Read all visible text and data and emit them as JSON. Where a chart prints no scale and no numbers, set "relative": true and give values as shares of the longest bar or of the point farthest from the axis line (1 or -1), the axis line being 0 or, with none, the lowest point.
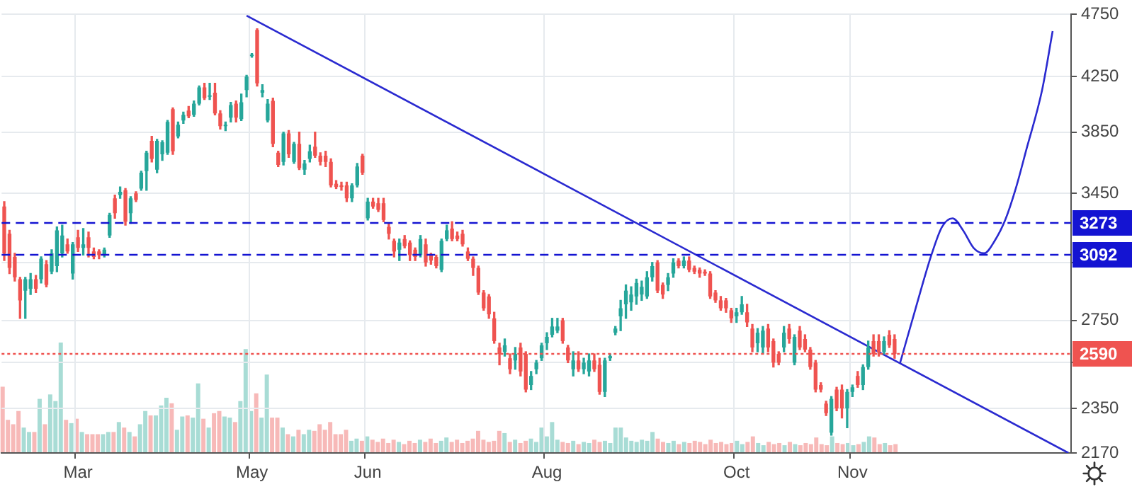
{
  "chart_data": [
    {
      "type": "candlestick",
      "log": true,
      "grid": true,
      "ylim": [
        2170,
        4750
      ],
      "yticks": [
        2170,
        2350,
        {
          "value": 2550,
          "label": null
        },
        2750,
        {
          "value": 3050,
          "label": null
        },
        3450,
        3850,
        4250,
        4750
      ],
      "categories": [
        null,
        null,
        null,
        null,
        null,
        null,
        null,
        null,
        null,
        null,
        null,
        null,
        null,
        null,
        "Mar",
        null,
        null,
        null,
        null,
        null,
        null,
        null,
        null,
        null,
        null,
        null,
        null,
        null,
        null,
        null,
        null,
        null,
        null,
        null,
        null,
        null,
        null,
        null,
        null,
        null,
        null,
        null,
        null,
        null,
        null,
        null,
        null,
        "May",
        null,
        null,
        null,
        null,
        null,
        null,
        null,
        null,
        null,
        null,
        null,
        null,
        null,
        null,
        null,
        null,
        null,
        null,
        null,
        null,
        null,
        "Jun",
        null,
        null,
        null,
        null,
        null,
        null,
        null,
        null,
        null,
        null,
        null,
        null,
        null,
        null,
        null,
        null,
        null,
        null,
        null,
        null,
        null,
        null,
        null,
        null,
        null,
        null,
        null,
        null,
        null,
        null,
        null,
        null,
        null,
        "Aug",
        null,
        null,
        null,
        null,
        null,
        null,
        null,
        null,
        null,
        null,
        null,
        null,
        null,
        null,
        null,
        null,
        null,
        null,
        null,
        null,
        null,
        null,
        null,
        null,
        null,
        null,
        null,
        null,
        null,
        null,
        null,
        null,
        null,
        null,
        null,
        "Oct",
        null,
        null,
        null,
        null,
        null,
        null,
        null,
        null,
        null,
        null,
        null,
        null,
        null,
        null,
        null,
        null,
        null,
        null,
        null,
        null,
        null,
        "Nov",
        null,
        null,
        null,
        null,
        null,
        null,
        null,
        null,
        null,
        null,
        null,
        null,
        null,
        null,
        null,
        null,
        null,
        null,
        null,
        null,
        null,
        null,
        null,
        null,
        null,
        null,
        null,
        null,
        null,
        null,
        null,
        null,
        null,
        null,
        null,
        null,
        null,
        null,
        null,
        null,
        null
      ],
      "ohlc": [
        [
          3370,
          3400,
          3060,
          3100
        ],
        [
          3210,
          3230,
          2990,
          3020
        ],
        [
          3080,
          3100,
          2950,
          2970
        ],
        [
          2960,
          2970,
          2760,
          2850
        ],
        [
          2900,
          2970,
          2760,
          2960
        ],
        [
          2910,
          2990,
          2880,
          2960
        ],
        [
          2960,
          2980,
          2890,
          2910
        ],
        [
          2960,
          3080,
          2940,
          3070
        ],
        [
          3040,
          3060,
          2920,
          2930
        ],
        [
          3000,
          3120,
          2990,
          3100
        ],
        [
          3030,
          3250,
          3000,
          3230
        ],
        [
          3100,
          3260,
          3080,
          3200
        ],
        [
          3150,
          3180,
          3100,
          3110
        ],
        [
          2990,
          3160,
          2960,
          3150
        ],
        [
          3190,
          3230,
          3110,
          3130
        ],
        [
          3130,
          3240,
          3090,
          3150
        ],
        [
          3190,
          3220,
          3080,
          3130
        ],
        [
          3110,
          3130,
          3070,
          3080
        ],
        [
          3110,
          3120,
          3070,
          3090
        ],
        [
          3090,
          3130,
          3080,
          3120
        ],
        [
          3200,
          3330,
          3190,
          3320
        ],
        [
          3420,
          3440,
          3300,
          3330
        ],
        [
          3440,
          3490,
          3420,
          3460
        ],
        [
          3470,
          3480,
          3260,
          3280
        ],
        [
          3330,
          3430,
          3270,
          3420
        ],
        [
          3450,
          3460,
          3400,
          3410
        ],
        [
          3480,
          3590,
          3470,
          3580
        ],
        [
          3590,
          3720,
          3470,
          3710
        ],
        [
          3790,
          3820,
          3650,
          3670
        ],
        [
          3600,
          3800,
          3580,
          3790
        ],
        [
          3700,
          3790,
          3660,
          3780
        ],
        [
          3710,
          3930,
          3700,
          3920
        ],
        [
          4010,
          4020,
          3700,
          3720
        ],
        [
          3820,
          3920,
          3810,
          3900
        ],
        [
          3930,
          3990,
          3910,
          3970
        ],
        [
          4000,
          4030,
          3950,
          3960
        ],
        [
          3970,
          4070,
          3960,
          4050
        ],
        [
          4050,
          4180,
          4040,
          4170
        ],
        [
          4170,
          4200,
          4080,
          4090
        ],
        [
          4100,
          4200,
          4080,
          4110
        ],
        [
          4130,
          4200,
          3970,
          3980
        ],
        [
          3980,
          4000,
          3870,
          3890
        ],
        [
          3890,
          3920,
          3860,
          3900
        ],
        [
          3950,
          4060,
          3920,
          4040
        ],
        [
          4050,
          4070,
          3920,
          3950
        ],
        [
          3940,
          4120,
          3930,
          4060
        ],
        [
          4150,
          4260,
          4100,
          4250
        ],
        [
          4410,
          4430,
          4400,
          4420
        ],
        [
          4620,
          4630,
          4180,
          4200
        ],
        [
          4130,
          4190,
          4100,
          4150
        ],
        [
          3930,
          4080,
          3920,
          4050
        ],
        [
          4070,
          4090,
          3750,
          3770
        ],
        [
          3710,
          3720,
          3620,
          3630
        ],
        [
          3650,
          3850,
          3630,
          3840
        ],
        [
          3840,
          3860,
          3680,
          3700
        ],
        [
          3650,
          3780,
          3640,
          3770
        ],
        [
          3770,
          3850,
          3600,
          3610
        ],
        [
          3600,
          3660,
          3570,
          3640
        ],
        [
          3670,
          3760,
          3650,
          3720
        ],
        [
          3750,
          3850,
          3680,
          3690
        ],
        [
          3690,
          3710,
          3630,
          3650
        ],
        [
          3690,
          3720,
          3620,
          3650
        ],
        [
          3650,
          3670,
          3490,
          3500
        ],
        [
          3510,
          3530,
          3480,
          3490
        ],
        [
          3500,
          3520,
          3470,
          3490
        ],
        [
          3500,
          3520,
          3400,
          3420
        ],
        [
          3420,
          3510,
          3400,
          3500
        ],
        [
          3500,
          3640,
          3490,
          3620
        ],
        [
          3690,
          3700,
          3570,
          3580
        ],
        [
          3300,
          3420,
          3290,
          3400
        ],
        [
          3400,
          3420,
          3360,
          3370
        ],
        [
          3390,
          3420,
          3340,
          3350
        ],
        [
          3390,
          3420,
          3280,
          3290
        ],
        [
          3250,
          3270,
          3180,
          3210
        ],
        [
          3170,
          3180,
          3080,
          3110
        ],
        [
          3120,
          3180,
          3060,
          3160
        ],
        [
          3180,
          3200,
          3130,
          3140
        ],
        [
          3160,
          3170,
          3060,
          3090
        ],
        [
          3120,
          3130,
          3060,
          3080
        ],
        [
          3090,
          3200,
          3080,
          3180
        ],
        [
          3150,
          3180,
          3030,
          3050
        ],
        [
          3090,
          3100,
          3040,
          3060
        ],
        [
          3080,
          3090,
          3020,
          3030
        ],
        [
          3010,
          3180,
          3000,
          3170
        ],
        [
          3180,
          3260,
          3170,
          3230
        ],
        [
          3240,
          3280,
          3170,
          3180
        ],
        [
          3200,
          3220,
          3170,
          3180
        ],
        [
          3210,
          3230,
          3140,
          3150
        ],
        [
          3110,
          3130,
          3060,
          3070
        ],
        [
          3070,
          3080,
          2980,
          3020
        ],
        [
          3020,
          3030,
          2880,
          2890
        ],
        [
          2890,
          2900,
          2800,
          2810
        ],
        [
          2870,
          2880,
          2760,
          2780
        ],
        [
          2760,
          2790,
          2640,
          2650
        ],
        [
          2620,
          2640,
          2540,
          2590
        ],
        [
          2600,
          2660,
          2580,
          2630
        ],
        [
          2570,
          2590,
          2500,
          2520
        ],
        [
          2560,
          2620,
          2520,
          2590
        ],
        [
          2620,
          2640,
          2490,
          2510
        ],
        [
          2590,
          2600,
          2420,
          2430
        ],
        [
          2450,
          2510,
          2430,
          2490
        ],
        [
          2520,
          2560,
          2500,
          2550
        ],
        [
          2570,
          2640,
          2560,
          2630
        ],
        [
          2640,
          2690,
          2610,
          2670
        ],
        [
          2680,
          2760,
          2670,
          2720
        ],
        [
          2700,
          2760,
          2690,
          2720
        ],
        [
          2750,
          2760,
          2640,
          2650
        ],
        [
          2620,
          2630,
          2550,
          2560
        ],
        [
          2520,
          2600,
          2490,
          2560
        ],
        [
          2560,
          2600,
          2510,
          2520
        ],
        [
          2520,
          2570,
          2500,
          2550
        ],
        [
          2510,
          2590,
          2490,
          2560
        ],
        [
          2560,
          2590,
          2510,
          2520
        ],
        [
          2540,
          2570,
          2410,
          2420
        ],
        [
          2420,
          2570,
          2400,
          2560
        ],
        [
          2570,
          2590,
          2560,
          2580
        ],
        [
          2690,
          2720,
          2680,
          2710
        ],
        [
          2770,
          2850,
          2700,
          2810
        ],
        [
          2830,
          2930,
          2760,
          2900
        ],
        [
          2840,
          2920,
          2800,
          2880
        ],
        [
          2870,
          2960,
          2830,
          2940
        ],
        [
          2880,
          2950,
          2850,
          2920
        ],
        [
          2870,
          3000,
          2860,
          2970
        ],
        [
          2970,
          3050,
          2950,
          3030
        ],
        [
          3050,
          3060,
          2890,
          2900
        ],
        [
          2930,
          2940,
          2860,
          2880
        ],
        [
          2930,
          2990,
          2900,
          2970
        ],
        [
          2990,
          3070,
          2970,
          3050
        ],
        [
          3060,
          3070,
          3020,
          3030
        ],
        [
          3030,
          3080,
          3020,
          3060
        ],
        [
          3060,
          3080,
          3000,
          3010
        ],
        [
          3020,
          3030,
          2990,
          3000
        ],
        [
          3010,
          3020,
          2970,
          2990
        ],
        [
          3000,
          3010,
          2980,
          2990
        ],
        [
          2990,
          3000,
          2860,
          2870
        ],
        [
          2890,
          2900,
          2840,
          2850
        ],
        [
          2850,
          2870,
          2800,
          2810
        ],
        [
          2850,
          2860,
          2790,
          2810
        ],
        [
          2800,
          2810,
          2740,
          2760
        ],
        [
          2770,
          2810,
          2740,
          2790
        ],
        [
          2790,
          2870,
          2780,
          2830
        ],
        [
          2790,
          2830,
          2720,
          2740
        ],
        [
          2710,
          2730,
          2600,
          2620
        ],
        [
          2640,
          2710,
          2600,
          2690
        ],
        [
          2620,
          2720,
          2590,
          2700
        ],
        [
          2710,
          2730,
          2600,
          2620
        ],
        [
          2650,
          2660,
          2530,
          2550
        ],
        [
          2590,
          2600,
          2540,
          2550
        ],
        [
          2620,
          2720,
          2600,
          2690
        ],
        [
          2710,
          2730,
          2640,
          2660
        ],
        [
          2550,
          2680,
          2540,
          2670
        ],
        [
          2700,
          2720,
          2610,
          2620
        ],
        [
          2660,
          2680,
          2600,
          2610
        ],
        [
          2610,
          2620,
          2520,
          2530
        ],
        [
          2550,
          2560,
          2420,
          2430
        ],
        [
          2450,
          2460,
          2420,
          2430
        ],
        [
          2370,
          2380,
          2320,
          2330
        ],
        [
          2250,
          2400,
          2240,
          2390
        ],
        [
          2430,
          2440,
          2340,
          2350
        ],
        [
          2430,
          2450,
          2310,
          2350
        ],
        [
          2350,
          2430,
          2270,
          2420
        ],
        [
          2420,
          2450,
          2400,
          2440
        ],
        [
          2490,
          2510,
          2440,
          2450
        ],
        [
          2450,
          2540,
          2430,
          2530
        ],
        [
          2530,
          2650,
          2520,
          2620
        ],
        [
          2650,
          2680,
          2580,
          2590
        ],
        [
          2650,
          2680,
          2580,
          2600
        ],
        [
          2600,
          2670,
          2590,
          2650
        ],
        [
          2680,
          2700,
          2620,
          2630
        ],
        [
          2660,
          2680,
          2570,
          2590
        ],
        null,
        null,
        null,
        null,
        null,
        null,
        null,
        null,
        null,
        null,
        null,
        null,
        null,
        null,
        null,
        null,
        null,
        null,
        null,
        null,
        null,
        null,
        null,
        null,
        null,
        null,
        null,
        null,
        null,
        null,
        null,
        null,
        null
      ],
      "colors": [
        "#ef5350",
        "#ef5350",
        "#ef5350",
        "#ef5350",
        "#26a69a",
        "#26a69a",
        "#ef5350",
        "#26a69a",
        "#ef5350",
        "#26a69a",
        "#26a69a",
        "#26a69a",
        "#ef5350",
        "#26a69a",
        "#ef5350",
        "#26a69a",
        "#ef5350",
        "#ef5350",
        "#ef5350",
        "#26a69a",
        "#26a69a",
        "#ef5350",
        "#26a69a",
        "#ef5350",
        "#26a69a",
        "#ef5350",
        "#26a69a",
        "#26a69a",
        "#ef5350",
        "#26a69a",
        "#26a69a",
        "#26a69a",
        "#ef5350",
        "#26a69a",
        "#26a69a",
        "#ef5350",
        "#26a69a",
        "#26a69a",
        "#ef5350",
        "#26a69a",
        "#ef5350",
        "#ef5350",
        "#26a69a",
        "#26a69a",
        "#ef5350",
        "#26a69a",
        "#26a69a",
        "#26a69a",
        "#ef5350",
        "#26a69a",
        "#26a69a",
        "#ef5350",
        "#ef5350",
        "#26a69a",
        "#ef5350",
        "#26a69a",
        "#ef5350",
        "#26a69a",
        "#26a69a",
        "#ef5350",
        "#ef5350",
        "#ef5350",
        "#ef5350",
        "#ef5350",
        "#ef5350",
        "#ef5350",
        "#26a69a",
        "#26a69a",
        "#ef5350",
        "#26a69a",
        "#ef5350",
        "#ef5350",
        "#ef5350",
        "#ef5350",
        "#ef5350",
        "#26a69a",
        "#ef5350",
        "#ef5350",
        "#ef5350",
        "#26a69a",
        "#ef5350",
        "#ef5350",
        "#ef5350",
        "#26a69a",
        "#26a69a",
        "#ef5350",
        "#ef5350",
        "#ef5350",
        "#ef5350",
        "#ef5350",
        "#ef5350",
        "#ef5350",
        "#ef5350",
        "#ef5350",
        "#ef5350",
        "#26a69a",
        "#ef5350",
        "#26a69a",
        "#ef5350",
        "#ef5350",
        "#26a69a",
        "#26a69a",
        "#26a69a",
        "#26a69a",
        "#26a69a",
        "#26a69a",
        "#ef5350",
        "#ef5350",
        "#26a69a",
        "#ef5350",
        "#26a69a",
        "#26a69a",
        "#ef5350",
        "#ef5350",
        "#26a69a",
        "#26a69a",
        "#26a69a",
        "#26a69a",
        "#26a69a",
        "#26a69a",
        "#26a69a",
        "#26a69a",
        "#26a69a",
        "#26a69a",
        "#ef5350",
        "#ef5350",
        "#26a69a",
        "#26a69a",
        "#ef5350",
        "#26a69a",
        "#ef5350",
        "#ef5350",
        "#ef5350",
        "#ef5350",
        "#ef5350",
        "#ef5350",
        "#ef5350",
        "#ef5350",
        "#ef5350",
        "#26a69a",
        "#26a69a",
        "#ef5350",
        "#ef5350",
        "#26a69a",
        "#26a69a",
        "#ef5350",
        "#ef5350",
        "#ef5350",
        "#26a69a",
        "#ef5350",
        "#26a69a",
        "#ef5350",
        "#ef5350",
        "#ef5350",
        "#ef5350",
        "#ef5350",
        "#ef5350",
        "#26a69a",
        "#ef5350",
        "#ef5350",
        "#26a69a",
        "#26a69a",
        "#ef5350",
        "#26a69a",
        "#26a69a",
        "#ef5350",
        "#ef5350",
        "#26a69a",
        "#ef5350",
        "#ef5350",
        null,
        null,
        null,
        null,
        null,
        null,
        null,
        null,
        null,
        null,
        null,
        null,
        null,
        null,
        null,
        null,
        null,
        null,
        null,
        null,
        null,
        null,
        null,
        null,
        null,
        null,
        null,
        null,
        null,
        null,
        null,
        null,
        null
      ],
      "ref_lines": [
        {
          "axis": "y",
          "value": 3273,
          "label": "3273",
          "color": "#1414d2",
          "line_style": "dashed"
        },
        {
          "axis": "y",
          "value": 3092,
          "label": "3092",
          "color": "#1414d2",
          "line_style": "dashed"
        },
        {
          "axis": "y",
          "value": 2590,
          "label": "2590",
          "color": "#ef5350",
          "line_style": "dotted"
        }
      ],
      "series": [
        {
          "type": "line",
          "color": "#2a2ad0",
          "values": [
            null,
            null,
            null,
            null,
            null,
            null,
            null,
            null,
            null,
            null,
            null,
            null,
            null,
            null,
            null,
            null,
            null,
            null,
            null,
            null,
            null,
            null,
            null,
            null,
            null,
            null,
            null,
            null,
            null,
            null,
            null,
            null,
            null,
            null,
            null,
            null,
            null,
            null,
            null,
            null,
            null,
            null,
            null,
            null,
            null,
            null,
            4740,
            null,
            null,
            null,
            null,
            null,
            null,
            null,
            null,
            null,
            null,
            null,
            null,
            null,
            null,
            null,
            null,
            null,
            null,
            null,
            null,
            null,
            null,
            null,
            null,
            null,
            null,
            null,
            null,
            null,
            null,
            null,
            null,
            null,
            null,
            null,
            null,
            null,
            null,
            null,
            null,
            null,
            null,
            null,
            null,
            null,
            null,
            null,
            null,
            null,
            null,
            null,
            null,
            null,
            null,
            null,
            null,
            null,
            null,
            null,
            null,
            null,
            null,
            null,
            null,
            null,
            null,
            null,
            null,
            null,
            null,
            null,
            null,
            null,
            null,
            null,
            null,
            null,
            null,
            null,
            null,
            null,
            null,
            null,
            null,
            null,
            null,
            null,
            null,
            null,
            null,
            null,
            null,
            null,
            null,
            null,
            null,
            null,
            null,
            null,
            null,
            null,
            null,
            null,
            null,
            null,
            null,
            null,
            null,
            null,
            null,
            null,
            null,
            null,
            null,
            null,
            null,
            null,
            null,
            null,
            null,
            null,
            null,
            null,
            null,
            null,
            null,
            null,
            null,
            null,
            null,
            null,
            null,
            null,
            null,
            null,
            null,
            null,
            null,
            null,
            null,
            null,
            null,
            null,
            null,
            null,
            null,
            null,
            null,
            null,
            null,
            null,
            null,
            null,
            null,
            null,
            2170
          ]
        },
        {
          "type": "line",
          "color": "#2a2ad0",
          "values": [
            null,
            null,
            null,
            null,
            null,
            null,
            null,
            null,
            null,
            null,
            null,
            null,
            null,
            null,
            null,
            null,
            null,
            null,
            null,
            null,
            null,
            null,
            null,
            null,
            null,
            null,
            null,
            null,
            null,
            null,
            null,
            null,
            null,
            null,
            null,
            null,
            null,
            null,
            null,
            null,
            null,
            null,
            null,
            null,
            null,
            null,
            null,
            null,
            null,
            null,
            null,
            null,
            null,
            null,
            null,
            null,
            null,
            null,
            null,
            null,
            null,
            null,
            null,
            null,
            null,
            null,
            null,
            null,
            null,
            null,
            null,
            null,
            null,
            null,
            null,
            null,
            null,
            null,
            null,
            null,
            null,
            null,
            null,
            null,
            null,
            null,
            null,
            null,
            null,
            null,
            null,
            null,
            null,
            null,
            null,
            null,
            null,
            null,
            null,
            null,
            null,
            null,
            null,
            null,
            null,
            null,
            null,
            null,
            null,
            null,
            null,
            null,
            null,
            null,
            null,
            null,
            null,
            null,
            null,
            null,
            null,
            null,
            null,
            null,
            null,
            null,
            null,
            null,
            null,
            null,
            null,
            null,
            null,
            null,
            null,
            null,
            null,
            null,
            null,
            null,
            null,
            null,
            null,
            null,
            null,
            null,
            null,
            null,
            null,
            null,
            null,
            null,
            null,
            null,
            null,
            null,
            null,
            null,
            null,
            null,
            null,
            null,
            null,
            null,
            null,
            null,
            null,
            null,
            null,
            null,
            2545,
            null,
            null,
            2810,
            null,
            null,
            3092,
            null,
            3250,
            null,
            3300,
            null,
            3230,
            null,
            3130,
            null,
            3100,
            null,
            3170,
            null,
            3290,
            null,
            3480,
            null,
            3730,
            null,
            null,
            4150,
            null,
            4610,
            null,
            null,
            null
          ]
        }
      ]
    },
    {
      "type": "bar",
      "relative": true,
      "categories": [
        null,
        null,
        null,
        null,
        null,
        null,
        null,
        null,
        null,
        null,
        null,
        null,
        null,
        null,
        null,
        null,
        null,
        null,
        null,
        null,
        null,
        null,
        null,
        null,
        null,
        null,
        null,
        null,
        null,
        null,
        null,
        null,
        null,
        null,
        null,
        null,
        null,
        null,
        null,
        null,
        null,
        null,
        null,
        null,
        null,
        null,
        null,
        null,
        null,
        null,
        null,
        null,
        null,
        null,
        null,
        null,
        null,
        null,
        null,
        null,
        null,
        null,
        null,
        null,
        null,
        null,
        null,
        null,
        null,
        null,
        null,
        null,
        null,
        null,
        null,
        null,
        null,
        null,
        null,
        null,
        null,
        null,
        null,
        null,
        null,
        null,
        null,
        null,
        null,
        null,
        null,
        null,
        null,
        null,
        null,
        null,
        null,
        null,
        null,
        null,
        null,
        null,
        null,
        null,
        null,
        null,
        null,
        null,
        null,
        null,
        null,
        null,
        null,
        null,
        null,
        null,
        null,
        null,
        null,
        null,
        null,
        null,
        null,
        null,
        null,
        null,
        null,
        null,
        null,
        null,
        null,
        null,
        null,
        null,
        null,
        null,
        null,
        null,
        null,
        null,
        null,
        null,
        null,
        null,
        null,
        null,
        null,
        null,
        null,
        null,
        null,
        null,
        null,
        null,
        null,
        null,
        null,
        null,
        null,
        null,
        null,
        null,
        null,
        null,
        null,
        null,
        null,
        null,
        null,
        null,
        null,
        null,
        null,
        null,
        null,
        null,
        null,
        null,
        null,
        null,
        null,
        null,
        null,
        null,
        null,
        null,
        null,
        null,
        null,
        null,
        null,
        null,
        null,
        null,
        null,
        null,
        null,
        null,
        null,
        null,
        null,
        null,
        null
      ],
      "values": [
        0.6,
        0.3,
        0.26,
        0.38,
        0.23,
        0.19,
        0.19,
        0.49,
        0.26,
        0.53,
        0.47,
        1,
        0.3,
        0.27,
        0.31,
        0.19,
        0.17,
        0.17,
        0.17,
        0.17,
        0.19,
        0.19,
        0.28,
        0.23,
        0.19,
        0.15,
        0.26,
        0.38,
        0.34,
        0.34,
        0.43,
        0.5,
        0.45,
        0.21,
        0.33,
        0.34,
        0.32,
        0.63,
        0.31,
        0.23,
        0.36,
        0.38,
        0.33,
        0.32,
        0.28,
        0.47,
        0.94,
        0.38,
        0.54,
        0.32,
        0.71,
        0.32,
        0.32,
        0.23,
        0.17,
        0.15,
        0.21,
        0.17,
        0.21,
        0.2,
        0.26,
        0.21,
        0.28,
        0.17,
        0.17,
        0.21,
        0.11,
        0.13,
        0.11,
        0.15,
        0.12,
        0.1,
        0.13,
        0.09,
        0.12,
        0.1,
        0.08,
        0.11,
        0.09,
        0.12,
        0.1,
        0.13,
        0.09,
        0.11,
        0.14,
        0.1,
        0.12,
        0.09,
        0.11,
        0.13,
        0.2,
        0.12,
        0.1,
        0.11,
        0.2,
        0.18,
        0.1,
        0.12,
        0.09,
        0.11,
        0.13,
        0.1,
        0.23,
        0.15,
        0.28,
        0.12,
        0.1,
        0.09,
        0.11,
        0.08,
        0.1,
        0.09,
        0.12,
        0.1,
        0.11,
        0.09,
        0.23,
        0.23,
        0.14,
        0.11,
        0.1,
        0.12,
        0.11,
        0.19,
        0.13,
        0.1,
        0.09,
        0.11,
        0.08,
        0.1,
        0.09,
        0.11,
        0.1,
        0.08,
        0.12,
        0.09,
        0.1,
        0.08,
        0.09,
        0.11,
        0.08,
        0.1,
        0.15,
        0.09,
        0.07,
        0.1,
        0.08,
        0.09,
        0.07,
        0.1,
        0.08,
        0.07,
        0.09,
        0.08,
        0.14,
        0.08,
        0.07,
        0.15,
        0.09,
        0.08,
        0.09,
        0.07,
        0.08,
        0.1,
        0.15,
        0.14,
        0.08,
        0.09,
        0.07,
        0.08,
        null,
        null,
        null,
        null,
        null,
        null,
        null,
        null,
        null,
        null,
        null,
        null,
        null,
        null,
        null,
        null,
        null,
        null,
        null,
        null,
        null,
        null,
        null,
        null,
        null,
        null,
        null,
        null,
        null,
        null,
        null,
        null,
        null
      ],
      "colors": [
        "#f7b9b8",
        "#f7b9b8",
        "#f7b9b8",
        "#f7b9b8",
        "#a8dcd5",
        "#a8dcd5",
        "#f7b9b8",
        "#a8dcd5",
        "#f7b9b8",
        "#a8dcd5",
        "#a8dcd5",
        "#a8dcd5",
        "#f7b9b8",
        "#a8dcd5",
        "#f7b9b8",
        "#a8dcd5",
        "#f7b9b8",
        "#f7b9b8",
        "#f7b9b8",
        "#a8dcd5",
        "#a8dcd5",
        "#f7b9b8",
        "#a8dcd5",
        "#f7b9b8",
        "#a8dcd5",
        "#f7b9b8",
        "#a8dcd5",
        "#a8dcd5",
        "#f7b9b8",
        "#a8dcd5",
        "#a8dcd5",
        "#a8dcd5",
        "#f7b9b8",
        "#a8dcd5",
        "#a8dcd5",
        "#f7b9b8",
        "#a8dcd5",
        "#a8dcd5",
        "#f7b9b8",
        "#a8dcd5",
        "#f7b9b8",
        "#f7b9b8",
        "#a8dcd5",
        "#a8dcd5",
        "#f7b9b8",
        "#a8dcd5",
        "#a8dcd5",
        "#a8dcd5",
        "#f7b9b8",
        "#a8dcd5",
        "#a8dcd5",
        "#f7b9b8",
        "#f7b9b8",
        "#a8dcd5",
        "#f7b9b8",
        "#a8dcd5",
        "#f7b9b8",
        "#a8dcd5",
        "#a8dcd5",
        "#f7b9b8",
        "#f7b9b8",
        "#f7b9b8",
        "#f7b9b8",
        "#f7b9b8",
        "#f7b9b8",
        "#f7b9b8",
        "#a8dcd5",
        "#a8dcd5",
        "#f7b9b8",
        "#a8dcd5",
        "#f7b9b8",
        "#f7b9b8",
        "#f7b9b8",
        "#f7b9b8",
        "#f7b9b8",
        "#a8dcd5",
        "#f7b9b8",
        "#f7b9b8",
        "#f7b9b8",
        "#a8dcd5",
        "#f7b9b8",
        "#f7b9b8",
        "#f7b9b8",
        "#a8dcd5",
        "#a8dcd5",
        "#f7b9b8",
        "#f7b9b8",
        "#f7b9b8",
        "#f7b9b8",
        "#f7b9b8",
        "#f7b9b8",
        "#f7b9b8",
        "#f7b9b8",
        "#f7b9b8",
        "#f7b9b8",
        "#a8dcd5",
        "#f7b9b8",
        "#a8dcd5",
        "#f7b9b8",
        "#f7b9b8",
        "#a8dcd5",
        "#a8dcd5",
        "#a8dcd5",
        "#a8dcd5",
        "#a8dcd5",
        "#a8dcd5",
        "#f7b9b8",
        "#f7b9b8",
        "#a8dcd5",
        "#f7b9b8",
        "#a8dcd5",
        "#a8dcd5",
        "#f7b9b8",
        "#f7b9b8",
        "#a8dcd5",
        "#a8dcd5",
        "#a8dcd5",
        "#a8dcd5",
        "#a8dcd5",
        "#a8dcd5",
        "#a8dcd5",
        "#a8dcd5",
        "#a8dcd5",
        "#a8dcd5",
        "#f7b9b8",
        "#f7b9b8",
        "#a8dcd5",
        "#a8dcd5",
        "#f7b9b8",
        "#a8dcd5",
        "#f7b9b8",
        "#f7b9b8",
        "#f7b9b8",
        "#f7b9b8",
        "#f7b9b8",
        "#f7b9b8",
        "#f7b9b8",
        "#f7b9b8",
        "#f7b9b8",
        "#a8dcd5",
        "#a8dcd5",
        "#f7b9b8",
        "#f7b9b8",
        "#a8dcd5",
        "#a8dcd5",
        "#f7b9b8",
        "#f7b9b8",
        "#f7b9b8",
        "#a8dcd5",
        "#f7b9b8",
        "#a8dcd5",
        "#f7b9b8",
        "#f7b9b8",
        "#f7b9b8",
        "#f7b9b8",
        "#f7b9b8",
        "#f7b9b8",
        "#a8dcd5",
        "#f7b9b8",
        "#f7b9b8",
        "#a8dcd5",
        "#a8dcd5",
        "#f7b9b8",
        "#a8dcd5",
        "#a8dcd5",
        "#f7b9b8",
        "#f7b9b8",
        "#a8dcd5",
        "#f7b9b8",
        "#f7b9b8",
        null,
        null,
        null,
        null,
        null,
        null,
        null,
        null,
        null,
        null,
        null,
        null,
        null,
        null,
        null,
        null,
        null,
        null,
        null,
        null,
        null,
        null,
        null,
        null,
        null,
        null,
        null,
        null,
        null,
        null,
        null,
        null,
        null
      ]
    }
  ]
}
